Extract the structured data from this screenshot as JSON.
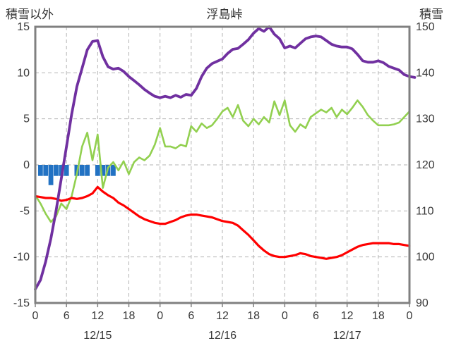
{
  "header": {
    "left_label": "積雪以外",
    "title": "浮島峠",
    "right_label": "積雪"
  },
  "chart_data": {
    "type": "line",
    "title": "浮島峠",
    "left_axis": {
      "label": "積雪以外",
      "min": -15,
      "max": 15,
      "ticks": [
        15,
        10,
        5,
        0,
        -5,
        -10,
        -15
      ]
    },
    "right_axis": {
      "label": "積雪",
      "min": 90,
      "max": 150,
      "ticks": [
        150,
        140,
        130,
        120,
        110,
        100,
        90
      ]
    },
    "x_axis": {
      "min_hour": 0,
      "max_hour": 72,
      "tick_interval": 6,
      "tick_labels": [
        "0",
        "6",
        "12",
        "18",
        "0",
        "6",
        "12",
        "18",
        "0",
        "6",
        "12",
        "18",
        "0"
      ],
      "day_labels": [
        {
          "label": "12/15",
          "center_hour": 12
        },
        {
          "label": "12/16",
          "center_hour": 36
        },
        {
          "label": "12/17",
          "center_hour": 60
        }
      ]
    },
    "style": {
      "frame": "#808080",
      "grid": "#b3b3b3",
      "text": "#383838"
    },
    "series": [
      {
        "name": "green-line",
        "color": "#92d050",
        "axis": "left",
        "width": 2.6,
        "values": [
          -3.3,
          -4.2,
          -5.3,
          -6.2,
          -5.6,
          -4.2,
          -4.8,
          -3.4,
          -1.0,
          2.0,
          3.5,
          0.5,
          3.3,
          -2.5,
          -0.3,
          0.3,
          -0.6,
          0.4,
          -1.0,
          0.3,
          0.8,
          0.5,
          1.0,
          2.2,
          4.0,
          2.0,
          2.0,
          1.8,
          2.2,
          2.0,
          4.2,
          3.6,
          4.5,
          4.0,
          4.3,
          5.0,
          5.8,
          6.2,
          5.2,
          6.5,
          4.8,
          4.2,
          5.0,
          4.4,
          5.2,
          4.6,
          6.9,
          5.4,
          7.0,
          4.3,
          3.6,
          4.4,
          4.0,
          5.2,
          5.6,
          6.0,
          5.7,
          6.2,
          5.2,
          6.0,
          5.5,
          6.2,
          7.0,
          6.3,
          5.4,
          4.8,
          4.3,
          4.3,
          4.3,
          4.4,
          4.6,
          5.2,
          5.8
        ]
      },
      {
        "name": "red-line",
        "color": "#ff0000",
        "axis": "left",
        "width": 3.2,
        "values": [
          -3.4,
          -3.5,
          -3.6,
          -3.6,
          -3.7,
          -3.9,
          -3.8,
          -3.6,
          -3.7,
          -3.6,
          -3.4,
          -3.1,
          -2.4,
          -2.9,
          -3.3,
          -3.6,
          -4.1,
          -4.4,
          -4.8,
          -5.2,
          -5.6,
          -5.9,
          -6.1,
          -6.3,
          -6.4,
          -6.4,
          -6.2,
          -6.0,
          -5.7,
          -5.5,
          -5.4,
          -5.4,
          -5.5,
          -5.6,
          -5.7,
          -5.9,
          -6.1,
          -6.2,
          -6.3,
          -6.6,
          -7.1,
          -7.6,
          -8.2,
          -8.8,
          -9.3,
          -9.7,
          -9.9,
          -10.0,
          -10.0,
          -9.9,
          -9.8,
          -9.6,
          -9.7,
          -9.9,
          -10.0,
          -10.1,
          -10.2,
          -10.1,
          -10.0,
          -9.8,
          -9.5,
          -9.2,
          -8.9,
          -8.7,
          -8.6,
          -8.5,
          -8.5,
          -8.5,
          -8.5,
          -8.6,
          -8.6,
          -8.7,
          -8.8
        ]
      },
      {
        "name": "purple-line",
        "color": "#7030a0",
        "axis": "right",
        "width": 3.8,
        "values": [
          93,
          95,
          99,
          104,
          110,
          117,
          124,
          131,
          137,
          141,
          145,
          146.8,
          147,
          143.5,
          141.3,
          140.8,
          141,
          140.3,
          139.2,
          138.3,
          137.4,
          136.4,
          135.6,
          134.9,
          134.6,
          134.9,
          134.6,
          135.1,
          134.7,
          135.3,
          135.1,
          136.6,
          139.2,
          141,
          142,
          142.5,
          143,
          144.2,
          145.1,
          145.3,
          146.2,
          147.2,
          148.6,
          149.6,
          149,
          150,
          148.4,
          147.4,
          145.4,
          145.8,
          145.4,
          146.4,
          147.4,
          147.8,
          148,
          147.8,
          147,
          146.2,
          145.8,
          145.6,
          145.6,
          145.2,
          144,
          142.6,
          142.3,
          142.3,
          142.6,
          142.2,
          141.4,
          141,
          140.6,
          139.6,
          139.2,
          139
        ]
      }
    ],
    "bars": {
      "name": "blue-bars",
      "color": "#2272c3",
      "axis": "left",
      "baseline": 0,
      "points": [
        {
          "h": 1,
          "v": 1.2
        },
        {
          "h": 2,
          "v": 1.2
        },
        {
          "h": 3,
          "v": 2.2
        },
        {
          "h": 4,
          "v": 1.2
        },
        {
          "h": 5,
          "v": 1.2
        },
        {
          "h": 6,
          "v": 1.2
        },
        {
          "h": 8,
          "v": 1.2
        },
        {
          "h": 9,
          "v": 1.2
        },
        {
          "h": 10,
          "v": 1.2
        },
        {
          "h": 12,
          "v": 1.2
        },
        {
          "h": 13,
          "v": 1.2
        },
        {
          "h": 14,
          "v": 1.2
        },
        {
          "h": 15,
          "v": 1.2
        }
      ]
    }
  }
}
